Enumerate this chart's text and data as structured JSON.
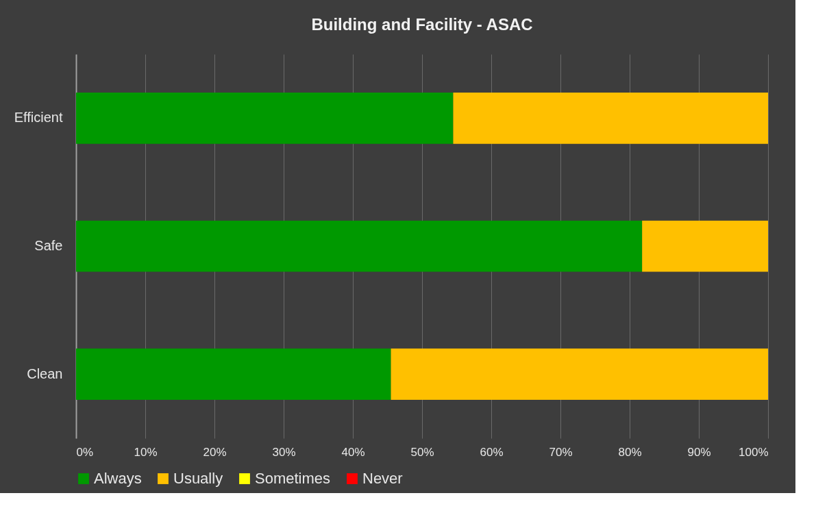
{
  "chart_data": {
    "type": "bar",
    "orientation": "horizontal",
    "stacked": true,
    "title": "Building and Facility - ASAC",
    "categories": [
      "Efficient",
      "Safe",
      "Clean"
    ],
    "series": [
      {
        "name": "Always",
        "color": "#009900",
        "values": [
          54.5,
          81.8,
          45.5
        ]
      },
      {
        "name": "Usually",
        "color": "#ffc000",
        "values": [
          45.5,
          18.2,
          54.5
        ]
      },
      {
        "name": "Sometimes",
        "color": "#ffff00",
        "values": [
          0,
          0,
          0
        ]
      },
      {
        "name": "Never",
        "color": "#ff0000",
        "values": [
          0,
          0,
          0
        ]
      }
    ],
    "xlim": [
      0,
      100
    ],
    "xticks": [
      {
        "value": 0,
        "label": "0%"
      },
      {
        "value": 10,
        "label": "10%"
      },
      {
        "value": 20,
        "label": "20%"
      },
      {
        "value": 30,
        "label": "30%"
      },
      {
        "value": 40,
        "label": "40%"
      },
      {
        "value": 50,
        "label": "50%"
      },
      {
        "value": 60,
        "label": "60%"
      },
      {
        "value": 70,
        "label": "70%"
      },
      {
        "value": 80,
        "label": "80%"
      },
      {
        "value": 90,
        "label": "90%"
      },
      {
        "value": 100,
        "label": "100%"
      }
    ],
    "grid": "x",
    "legend": "bottom"
  }
}
